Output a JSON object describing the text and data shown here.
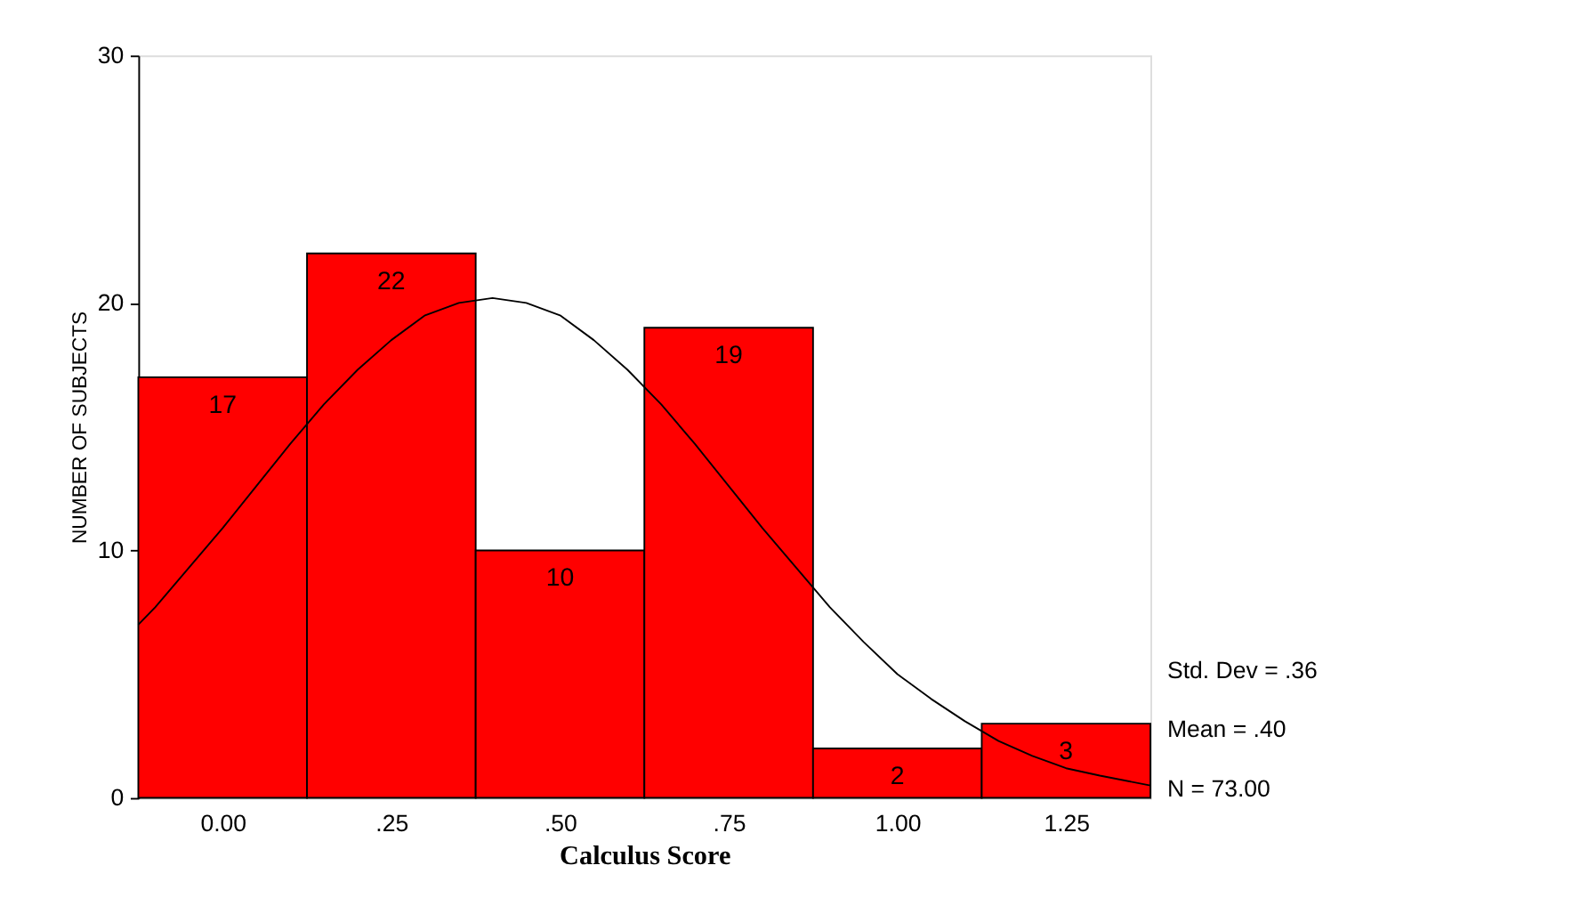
{
  "chart_data": {
    "type": "histogram",
    "xlabel": "Calculus Score",
    "ylabel": "NUMBER OF SUBJECTS",
    "bins": [
      -0.125,
      0.125,
      0.375,
      0.625,
      0.875,
      1.125,
      1.375
    ],
    "values": [
      17,
      22,
      10,
      19,
      2,
      3
    ],
    "color": "#ff0000",
    "value_labels": [
      "17",
      "22",
      "10",
      "19",
      "2",
      "3"
    ],
    "xlim": [
      -0.125,
      1.375
    ],
    "xticks": [
      {
        "value": 0,
        "label": "0.00"
      },
      {
        "value": 0.25,
        "label": ".25"
      },
      {
        "value": 0.5,
        "label": ".50"
      },
      {
        "value": 0.75,
        "label": ".75"
      },
      {
        "value": 1,
        "label": "1.00"
      },
      {
        "value": 1.25,
        "label": "1.25"
      }
    ],
    "ylim": [
      0,
      30
    ],
    "yticks": [
      0,
      10,
      20,
      30
    ],
    "grid": false,
    "series": [
      {
        "type": "line",
        "color": "#000000",
        "x": [
          -0.125,
          -0.1,
          -0.05,
          0,
          0.05,
          0.1,
          0.15,
          0.2,
          0.25,
          0.3,
          0.35,
          0.4,
          0.45,
          0.5,
          0.55,
          0.6,
          0.65,
          0.7,
          0.75,
          0.8,
          0.85,
          0.9,
          0.95,
          1.0,
          1.05,
          1.1,
          1.15,
          1.2,
          1.25,
          1.3,
          1.375
        ],
        "values": [
          7.0,
          7.7,
          9.3,
          10.9,
          12.6,
          14.3,
          15.9,
          17.3,
          18.5,
          19.5,
          20.0,
          20.2,
          20.0,
          19.5,
          18.5,
          17.3,
          15.9,
          14.3,
          12.6,
          10.9,
          9.3,
          7.7,
          6.3,
          5.0,
          4.0,
          3.1,
          2.3,
          1.7,
          1.2,
          0.9,
          0.5
        ]
      }
    ],
    "annotations": [
      "Std. Dev = .36",
      "Mean = .40",
      "N = 73.00"
    ]
  }
}
